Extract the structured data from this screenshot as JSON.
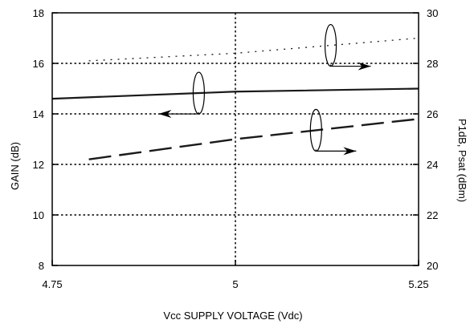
{
  "chart_data": {
    "type": "line",
    "xlabel": "Vcc SUPPLY VOLTAGE (Vdc)",
    "ylabel_left": "GAIN (dB)",
    "ylabel_right": "P1dB, Psat (dBm)",
    "xlim": [
      4.75,
      5.25
    ],
    "ylim_left": [
      8,
      18
    ],
    "ylim_right": [
      20,
      30
    ],
    "x_ticks": [
      "4.75",
      "5",
      "5.25"
    ],
    "y_ticks_left": [
      "8",
      "10",
      "12",
      "14",
      "16",
      "18"
    ],
    "y_ticks_right": [
      "20",
      "22",
      "24",
      "26",
      "28",
      "30"
    ],
    "grid": true,
    "grid_style": "dotted",
    "series": [
      {
        "axis": "left",
        "style": "solid",
        "x": [
          4.75,
          5.0,
          5.25
        ],
        "y": [
          14.6,
          14.88,
          15.0
        ]
      },
      {
        "axis": "right",
        "style": "dotted",
        "x": [
          4.8,
          5.0,
          5.25
        ],
        "y": [
          28.1,
          28.4,
          29.0
        ]
      },
      {
        "axis": "right",
        "style": "dashed",
        "x": [
          4.8,
          5.0,
          5.25
        ],
        "y": [
          24.2,
          25.0,
          25.8
        ]
      }
    ],
    "annotations": [
      {
        "target_series": 0,
        "points_to": "left"
      },
      {
        "target_series": 1,
        "points_to": "right"
      },
      {
        "target_series": 2,
        "points_to": "right"
      }
    ],
    "line_color": "#1a1a1a"
  }
}
